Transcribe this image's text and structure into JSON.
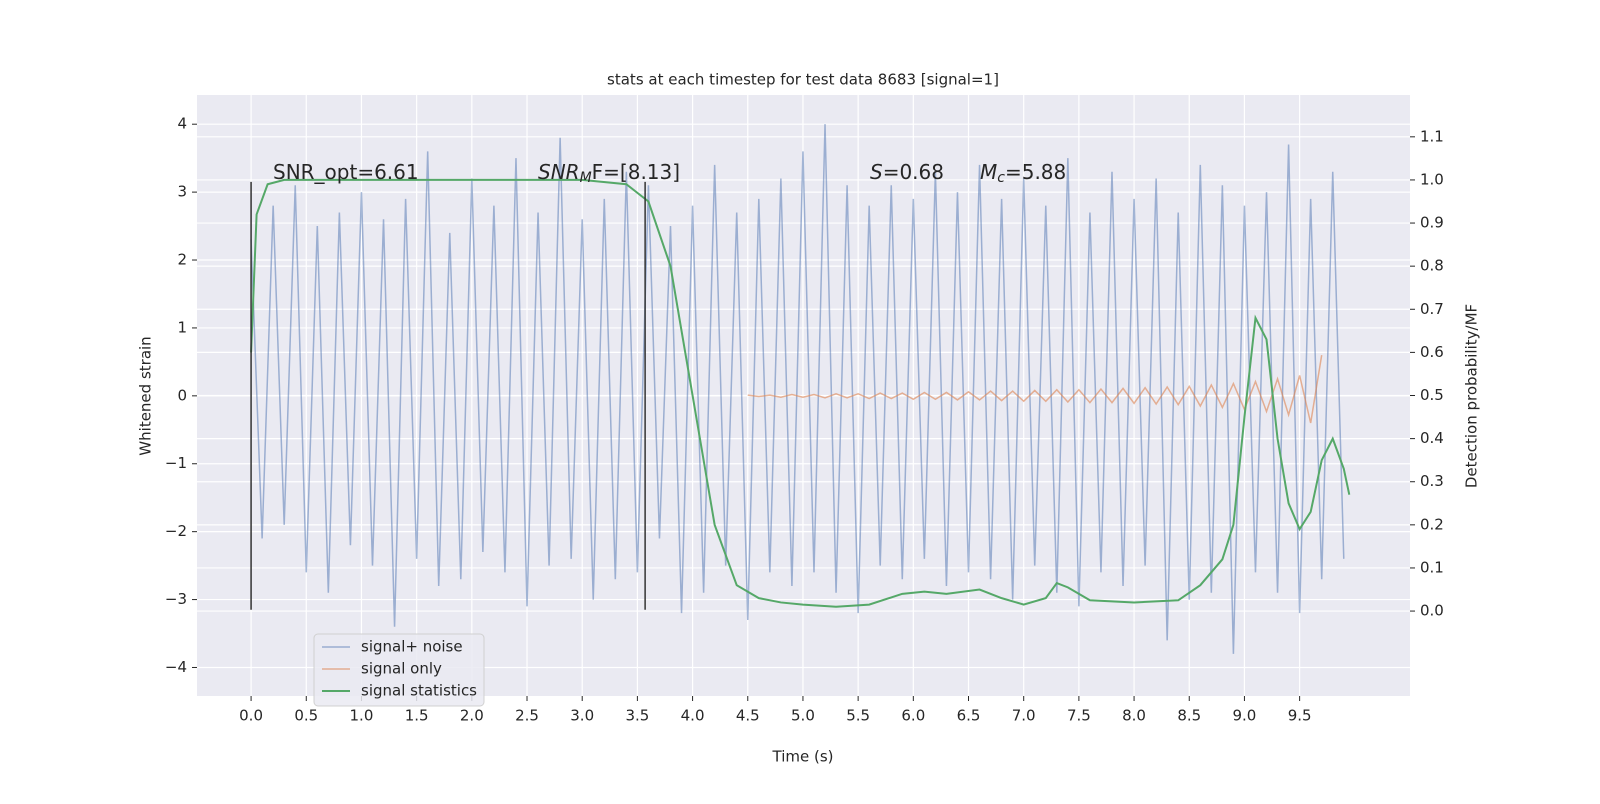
{
  "chart_data": {
    "type": "line",
    "title": "stats at each timestep for test data 8683 [signal=1]",
    "xlabel": "Time (s)",
    "ylabel": "Whitened strain",
    "y2label": "Detection probability/MF",
    "xlim": [
      -0.49,
      10.5
    ],
    "ylim": [
      -4.42,
      4.43
    ],
    "y2lim": [
      -0.197,
      1.197
    ],
    "xticks": [
      {
        "value": 0,
        "label": "0.0"
      },
      0.5,
      {
        "value": 1,
        "label": "1.0"
      },
      1.5,
      {
        "value": 2,
        "label": "2.0"
      },
      2.5,
      {
        "value": 3,
        "label": "3.0"
      },
      3.5,
      {
        "value": 4,
        "label": "4.0"
      },
      4.5,
      {
        "value": 5,
        "label": "5.0"
      },
      5.5,
      {
        "value": 6,
        "label": "6.0"
      },
      6.5,
      {
        "value": 7,
        "label": "7.0"
      },
      7.5,
      {
        "value": 8,
        "label": "8.0"
      },
      8.5,
      {
        "value": 9,
        "label": "9.0"
      },
      9.5
    ],
    "yticks": [
      {
        "value": -4,
        "label": "−4"
      },
      {
        "value": -3,
        "label": "−3"
      },
      {
        "value": -2,
        "label": "−2"
      },
      {
        "value": -1,
        "label": "−1"
      },
      0,
      1,
      2,
      3,
      4
    ],
    "y2ticks": [
      {
        "value": 0,
        "label": "0.0"
      },
      0.1,
      0.2,
      0.3,
      0.4,
      0.5,
      0.6,
      0.7,
      0.8,
      0.9,
      {
        "value": 1,
        "label": "1.0"
      },
      1.1
    ],
    "grid": true,
    "legend": "lower left",
    "series": [
      {
        "name": "signal+ noise",
        "color": "#4c72b0",
        "x": [
          0,
          0.1,
          0.2,
          0.3,
          0.4,
          0.5,
          0.6,
          0.7,
          0.8,
          0.9,
          1,
          1.1,
          1.2,
          1.3,
          1.4,
          1.5,
          1.6,
          1.7,
          1.8,
          1.9,
          2,
          2.1,
          2.2,
          2.3,
          2.4,
          2.5,
          2.6,
          2.7,
          2.8,
          2.9,
          3,
          3.1,
          3.2,
          3.3,
          3.4,
          3.5,
          3.6,
          3.7,
          3.8,
          3.9,
          4,
          4.1,
          4.2,
          4.3,
          4.4,
          4.5,
          4.6,
          4.7,
          4.8,
          4.9,
          5,
          5.1,
          5.2,
          5.3,
          5.4,
          5.5,
          5.6,
          5.7,
          5.8,
          5.9,
          6,
          6.1,
          6.2,
          6.3,
          6.4,
          6.5,
          6.6,
          6.7,
          6.8,
          6.9,
          7,
          7.1,
          7.2,
          7.3,
          7.4,
          7.5,
          7.6,
          7.7,
          7.8,
          7.9,
          8,
          8.1,
          8.2,
          8.3,
          8.4,
          8.5,
          8.6,
          8.7,
          8.8,
          8.9,
          9,
          9.1,
          9.2,
          9.3,
          9.4,
          9.5,
          9.6,
          9.7,
          9.8,
          9.9
        ],
        "values": [
          2.3,
          -2.1,
          2.8,
          -1.9,
          3.1,
          -2.6,
          2.5,
          -2.9,
          2.7,
          -2.2,
          3.0,
          -2.5,
          2.6,
          -3.4,
          2.9,
          -2.4,
          3.6,
          -2.8,
          2.4,
          -2.7,
          3.2,
          -2.3,
          2.8,
          -2.6,
          3.5,
          -3.1,
          2.7,
          -2.5,
          3.8,
          -2.4,
          2.6,
          -3.0,
          2.9,
          -2.7,
          3.3,
          -2.6,
          3.1,
          -2.1,
          2.5,
          -3.2,
          2.8,
          -2.9,
          3.4,
          -2.5,
          2.7,
          -3.3,
          2.9,
          -2.6,
          3.2,
          -2.8,
          3.6,
          -2.6,
          4.0,
          -2.9,
          3.1,
          -3.2,
          2.8,
          -2.5,
          3.1,
          -2.7,
          2.9,
          -2.4,
          3.3,
          -2.8,
          3.0,
          -2.6,
          3.4,
          -2.7,
          2.9,
          -3.0,
          3.2,
          -2.5,
          2.8,
          -2.9,
          3.5,
          -3.1,
          2.7,
          -2.6,
          3.3,
          -2.8,
          2.9,
          -2.5,
          3.2,
          -3.6,
          2.7,
          -3.0,
          3.4,
          -2.9,
          3.1,
          -3.8,
          2.8,
          -2.6,
          3.0,
          -2.9,
          3.7,
          -3.2,
          2.9,
          -2.7,
          3.3,
          -2.4
        ]
      },
      {
        "name": "signal only",
        "color": "#dd8452",
        "x": [
          4.5,
          4.6,
          4.7,
          4.8,
          4.9,
          5,
          5.1,
          5.2,
          5.3,
          5.4,
          5.5,
          5.6,
          5.7,
          5.8,
          5.9,
          6,
          6.1,
          6.2,
          6.3,
          6.4,
          6.5,
          6.6,
          6.7,
          6.8,
          6.9,
          7,
          7.1,
          7.2,
          7.3,
          7.4,
          7.5,
          7.6,
          7.7,
          7.8,
          7.9,
          8,
          8.1,
          8.2,
          8.3,
          8.4,
          8.5,
          8.6,
          8.7,
          8.8,
          8.9,
          9,
          9.1,
          9.2,
          9.3,
          9.4,
          9.5,
          9.6,
          9.7
        ],
        "values": [
          0.01,
          -0.01,
          0.01,
          -0.02,
          0.02,
          -0.02,
          0.02,
          -0.03,
          0.03,
          -0.03,
          0.03,
          -0.04,
          0.04,
          -0.04,
          0.04,
          -0.05,
          0.05,
          -0.05,
          0.05,
          -0.06,
          0.06,
          -0.06,
          0.07,
          -0.07,
          0.07,
          -0.08,
          0.08,
          -0.08,
          0.09,
          -0.09,
          0.09,
          -0.1,
          0.1,
          -0.1,
          0.11,
          -0.11,
          0.12,
          -0.12,
          0.13,
          -0.13,
          0.14,
          -0.15,
          0.16,
          -0.17,
          0.18,
          -0.2,
          0.21,
          -0.23,
          0.25,
          -0.28,
          0.3,
          -0.4,
          0.6
        ]
      },
      {
        "name": "signal statistics",
        "color": "#55a868",
        "axis": "y2",
        "x": [
          0,
          0.05,
          0.15,
          0.3,
          1,
          2,
          3,
          3.4,
          3.6,
          3.8,
          4,
          4.2,
          4.4,
          4.6,
          4.8,
          5,
          5.3,
          5.6,
          5.9,
          6.1,
          6.3,
          6.6,
          6.8,
          7,
          7.2,
          7.3,
          7.4,
          7.6,
          8,
          8.4,
          8.6,
          8.8,
          8.9,
          9,
          9.1,
          9.2,
          9.3,
          9.4,
          9.5,
          9.6,
          9.7,
          9.8,
          9.9,
          9.95
        ],
        "values": [
          0.6,
          0.92,
          0.99,
          1,
          1,
          1,
          1,
          0.99,
          0.95,
          0.8,
          0.5,
          0.2,
          0.06,
          0.03,
          0.02,
          0.015,
          0.01,
          0.015,
          0.04,
          0.045,
          0.04,
          0.05,
          0.03,
          0.015,
          0.03,
          0.065,
          0.055,
          0.025,
          0.02,
          0.025,
          0.06,
          0.12,
          0.2,
          0.45,
          0.68,
          0.63,
          0.4,
          0.25,
          0.19,
          0.23,
          0.35,
          0.4,
          0.33,
          0.27
        ]
      }
    ],
    "vlines": {
      "x": [
        0,
        3.57
      ],
      "ymin": -3.15,
      "ymax": 3.15,
      "color": "#333333"
    },
    "annotations": [
      {
        "text": "SNR_opt=6.61"
      },
      {
        "text": "SNR",
        "sub": "M",
        "tail": "F=[8.13]"
      },
      {
        "text": "S",
        "tail": "=0.68"
      },
      {
        "text": "M",
        "sub": "c",
        "tail": "=5.88"
      }
    ]
  }
}
